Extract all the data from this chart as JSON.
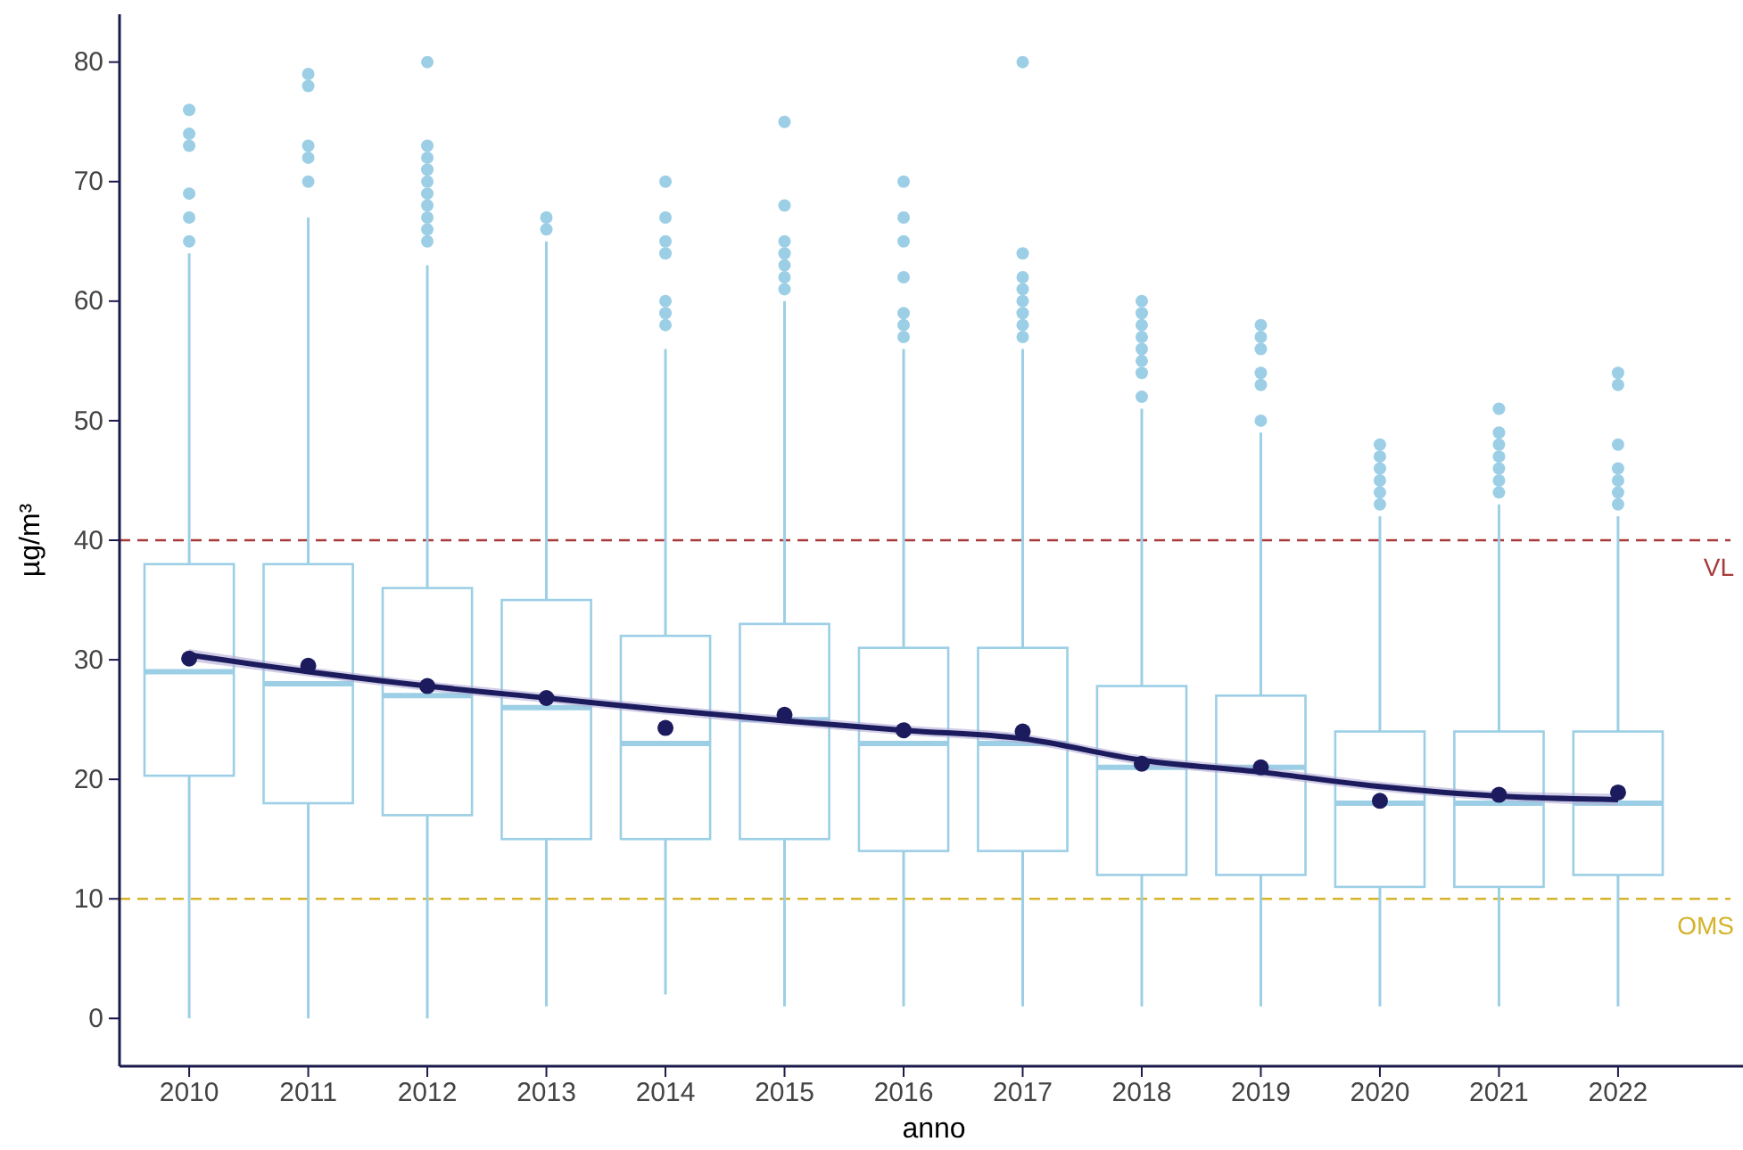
{
  "chart_data": {
    "type": "box",
    "xlabel": "anno",
    "ylabel": "µg/m³",
    "categories": [
      "2010",
      "2011",
      "2012",
      "2013",
      "2014",
      "2015",
      "2016",
      "2017",
      "2018",
      "2019",
      "2020",
      "2021",
      "2022"
    ],
    "color": "#9ccfe6",
    "boxes": [
      {
        "low": 0,
        "q1": 20.3,
        "median": 29,
        "q3": 38,
        "high": 64,
        "outliers": [
          65,
          67,
          69,
          73,
          74,
          76
        ]
      },
      {
        "low": 0,
        "q1": 18,
        "median": 28,
        "q3": 38,
        "high": 67,
        "outliers": [
          70,
          72,
          73,
          78,
          79
        ]
      },
      {
        "low": 0,
        "q1": 17,
        "median": 27,
        "q3": 36,
        "high": 63,
        "outliers": [
          65,
          66,
          67,
          68,
          69,
          70,
          71,
          72,
          73,
          80
        ]
      },
      {
        "low": 1,
        "q1": 15,
        "median": 26,
        "q3": 35,
        "high": 65,
        "outliers": [
          66,
          67
        ]
      },
      {
        "low": 2,
        "q1": 15,
        "median": 23,
        "q3": 32,
        "high": 56,
        "outliers": [
          58,
          59,
          60,
          64,
          65,
          67,
          70
        ]
      },
      {
        "low": 1,
        "q1": 15,
        "median": 25,
        "q3": 33,
        "high": 60,
        "outliers": [
          61,
          62,
          63,
          64,
          65,
          68,
          75
        ]
      },
      {
        "low": 1,
        "q1": 14,
        "median": 23,
        "q3": 31,
        "high": 56,
        "outliers": [
          57,
          58,
          59,
          62,
          65,
          67,
          70
        ]
      },
      {
        "low": 1,
        "q1": 14,
        "median": 23,
        "q3": 31,
        "high": 56,
        "outliers": [
          57,
          58,
          59,
          60,
          61,
          62,
          64,
          80
        ]
      },
      {
        "low": 1,
        "q1": 12,
        "median": 21,
        "q3": 27.8,
        "high": 51,
        "outliers": [
          52,
          54,
          55,
          56,
          57,
          58,
          59,
          60
        ]
      },
      {
        "low": 1,
        "q1": 12,
        "median": 21,
        "q3": 27,
        "high": 49,
        "outliers": [
          50,
          53,
          54,
          56,
          57,
          58
        ]
      },
      {
        "low": 1,
        "q1": 11,
        "median": 18,
        "q3": 24,
        "high": 42,
        "outliers": [
          43,
          44,
          45,
          46,
          47,
          48
        ]
      },
      {
        "low": 1,
        "q1": 11,
        "median": 18,
        "q3": 24,
        "high": 43,
        "outliers": [
          44,
          45,
          46,
          47,
          48,
          49,
          51
        ]
      },
      {
        "low": 1,
        "q1": 12,
        "median": 18,
        "q3": 24,
        "high": 42,
        "outliers": [
          43,
          44,
          45,
          46,
          48,
          53,
          54
        ]
      }
    ],
    "series": [
      {
        "type": "line",
        "color": "#1b1b5e",
        "values": [
          30.4,
          29.0,
          27.8,
          26.8,
          25.8,
          24.9,
          24.1,
          23.4,
          21.6,
          20.6,
          19.4,
          18.6,
          18.3
        ],
        "lower": [
          29.9,
          28.6,
          27.4,
          26.4,
          25.4,
          24.5,
          23.7,
          23.0,
          21.2,
          20.2,
          19.0,
          18.2,
          17.8
        ],
        "upper": [
          30.9,
          29.4,
          28.2,
          27.2,
          26.2,
          25.3,
          24.5,
          23.8,
          22.0,
          21.0,
          19.8,
          19.0,
          18.8
        ]
      },
      {
        "type": "scatter",
        "color": "#1b1b5e",
        "values": [
          30.1,
          29.5,
          27.8,
          26.8,
          24.3,
          25.4,
          24.1,
          24.0,
          21.3,
          21.0,
          18.2,
          18.7,
          18.9
        ]
      }
    ],
    "ylim": [
      -4,
      84
    ],
    "yticks": [
      0,
      10,
      20,
      30,
      40,
      50,
      60,
      70,
      80
    ],
    "ref_lines": [
      {
        "axis": "y",
        "value": 40,
        "label": "VL",
        "color": "#a83a3a",
        "line_style": "dashed"
      },
      {
        "axis": "y",
        "value": 10,
        "label": "OMS",
        "color": "#d4b32a",
        "line_style": "dashed"
      }
    ],
    "grid": false
  }
}
